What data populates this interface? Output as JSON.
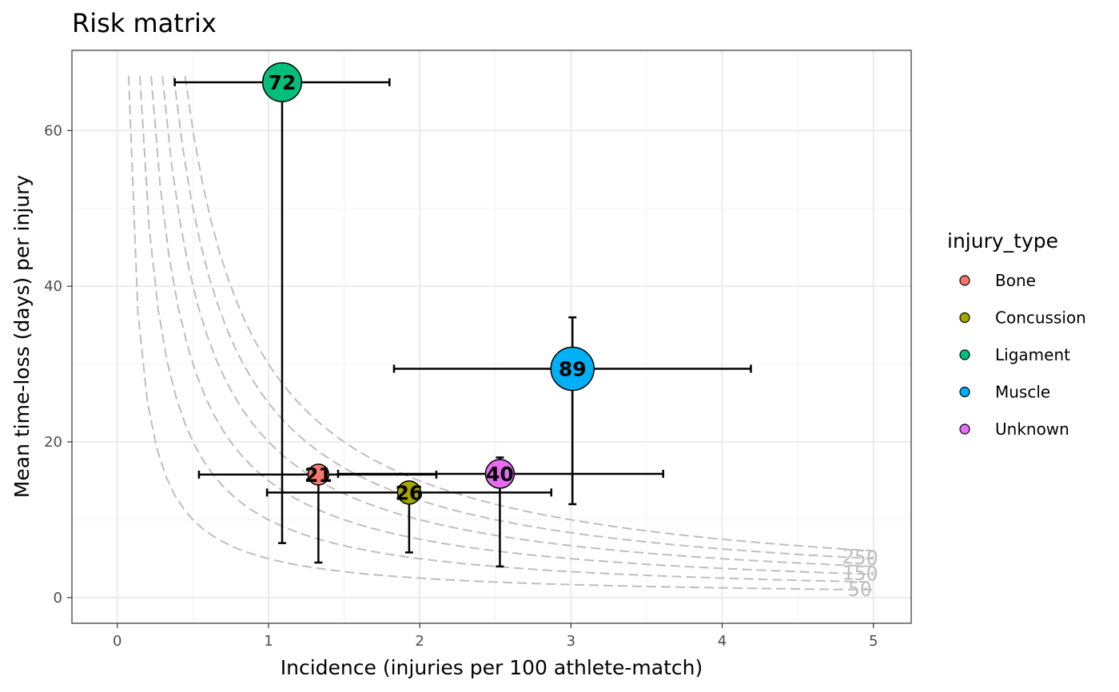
{
  "chart_data": {
    "type": "scatter",
    "title": "Risk matrix",
    "xlabel": "Incidence (injuries per 100 athlete-match)",
    "ylabel": "Mean time-loss (days) per injury",
    "xlim": [
      -0.3,
      5.25
    ],
    "ylim": [
      -3.3,
      70.3
    ],
    "x_ticks": [
      0,
      1,
      2,
      3,
      4,
      5
    ],
    "y_ticks": [
      0,
      20,
      40,
      60
    ],
    "grid": true,
    "legend": {
      "title": "injury_type",
      "position": "right"
    },
    "series": [
      {
        "name": "Bone",
        "color": "#F8766D",
        "x": 1.33,
        "y": 15.8,
        "x_err": [
          0.54,
          2.11
        ],
        "y_err": [
          4.5,
          15.8
        ],
        "label": "21",
        "size": 21
      },
      {
        "name": "Concussion",
        "color": "#A3A500",
        "x": 1.93,
        "y": 13.5,
        "x_err": [
          0.99,
          2.87
        ],
        "y_err": [
          5.8,
          13.5
        ],
        "label": "26",
        "size": 26
      },
      {
        "name": "Ligament",
        "color": "#00BF7D",
        "x": 1.09,
        "y": 66.2,
        "x_err": [
          0.38,
          1.8
        ],
        "y_err": [
          7.0,
          66.2
        ],
        "label": "72",
        "size": 72
      },
      {
        "name": "Muscle",
        "color": "#00B0F6",
        "x": 3.01,
        "y": 29.4,
        "x_err": [
          1.83,
          4.19
        ],
        "y_err": [
          12.0,
          36.0
        ],
        "label": "89",
        "size": 89
      },
      {
        "name": "Unknown",
        "color": "#E76BF3",
        "x": 2.53,
        "y": 15.9,
        "x_err": [
          1.46,
          3.61
        ],
        "y_err": [
          4.0,
          18.0
        ],
        "label": "40",
        "size": 40
      }
    ],
    "iso_burden": [
      {
        "value": 50,
        "label": "50",
        "labeled": true
      },
      {
        "value": 100,
        "label": "",
        "labeled": false
      },
      {
        "value": 150,
        "label": "150",
        "labeled": true
      },
      {
        "value": 200,
        "label": "",
        "labeled": false
      },
      {
        "value": 250,
        "label": "250",
        "labeled": true
      },
      {
        "value": 300,
        "label": "",
        "labeled": false
      }
    ]
  }
}
